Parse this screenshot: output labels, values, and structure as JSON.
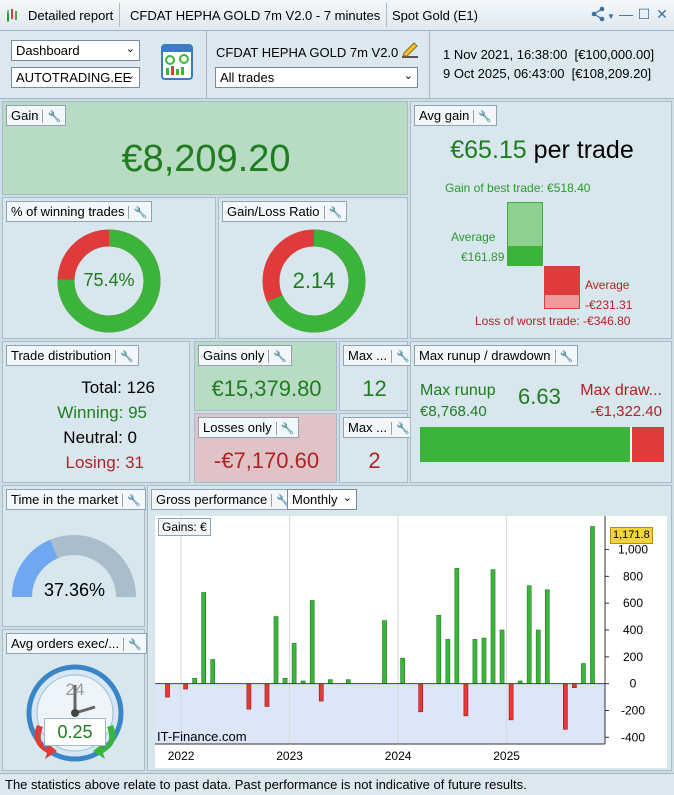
{
  "titlebar": {
    "tabs": [
      "Detailed report",
      "CFDAT HEPHA GOLD 7m V2.0 - 7 minutes",
      "Spot Gold (E1)"
    ]
  },
  "toolbar": {
    "view_select": "Dashboard",
    "account_select": "AUTOTRADING.EE",
    "strategy_name": "CFDAT HEPHA GOLD 7m V2.0",
    "trades_select": "All trades",
    "range_start": "1 Nov 2021, 16:38:00  [€100,000.00]",
    "range_end": "9 Oct 2025, 06:43:00  [€108,209.20]"
  },
  "gain": {
    "title": "Gain",
    "value": "€8,209.20"
  },
  "avg_gain": {
    "title": "Avg gain",
    "value": "€65.15",
    "suffix": "per trade",
    "best_label": "Gain of best trade: €518.40",
    "avg_pos_label": "Average",
    "avg_pos_value": "€161.89",
    "avg_neg_label": "Average",
    "avg_neg_value": "-€231.31",
    "worst_label": "Loss of worst trade: -€346.80"
  },
  "winning": {
    "title": "% of winning trades",
    "value": "75.4%",
    "fraction": 0.754
  },
  "ratio": {
    "title": "Gain/Loss Ratio",
    "value": "2.14",
    "fraction": 0.682
  },
  "distribution": {
    "title": "Trade distribution",
    "total": "Total: 126",
    "winning": "Winning: 95",
    "neutral": "Neutral: 0",
    "losing": "Losing: 31"
  },
  "gains_only": {
    "title": "Gains only",
    "value": "€15,379.80"
  },
  "losses_only": {
    "title": "Losses only",
    "value": "-€7,170.60"
  },
  "max1": {
    "title": "Max ...",
    "value": "12"
  },
  "max2": {
    "title": "Max ...",
    "value": "2"
  },
  "runup": {
    "title": "Max runup / drawdown",
    "runup_label": "Max runup",
    "runup_value": "€8,768.40",
    "ratio": "6.63",
    "drawdown_label": "Max draw...",
    "drawdown_value": "-€1,322.40",
    "runup_fraction": 0.869
  },
  "time_market": {
    "title": "Time in the market",
    "value": "37.36%",
    "fraction": 0.3736
  },
  "avg_orders": {
    "title": "Avg orders exec/...",
    "clock_label": "24",
    "value": "0.25"
  },
  "gross": {
    "title": "Gross performance",
    "period_select": "Monthly",
    "gains_label": "Gains: €",
    "last_value": "1,171.8",
    "watermark": "IT-Finance.com"
  },
  "footer": {
    "text": "The statistics above relate to past data. Past performance is not indicative of future results."
  },
  "colors": {
    "green": "#3cb43c",
    "red": "#e03b3b",
    "gauge_blue": "#6fa8f0",
    "gauge_grey": "#a9bdca"
  },
  "chart_data": {
    "type": "bar",
    "title": "",
    "ylabel": "",
    "ylim": [
      -450,
      1250
    ],
    "yticks": [
      -400,
      -200,
      0,
      200,
      400,
      600,
      800,
      1000
    ],
    "ytick_labels": [
      "-400",
      "-200",
      "0",
      "200",
      "400",
      "600",
      "800",
      "1,000"
    ],
    "xtick_labels": [
      "2022",
      "2023",
      "2024",
      "2025"
    ],
    "xtick_dates": [
      "2022-01",
      "2023-01",
      "2024-01",
      "2025-01"
    ],
    "dates": [
      "2021-11",
      "2021-12",
      "2022-01",
      "2022-02",
      "2022-03",
      "2022-04",
      "2022-05",
      "2022-06",
      "2022-07",
      "2022-08",
      "2022-09",
      "2022-10",
      "2022-11",
      "2022-12",
      "2023-01",
      "2023-02",
      "2023-03",
      "2023-04",
      "2023-05",
      "2023-06",
      "2023-07",
      "2023-08",
      "2023-09",
      "2023-10",
      "2023-11",
      "2023-12",
      "2024-01",
      "2024-02",
      "2024-03",
      "2024-04",
      "2024-05",
      "2024-06",
      "2024-07",
      "2024-08",
      "2024-09",
      "2024-10",
      "2024-11",
      "2024-12",
      "2025-01",
      "2025-02",
      "2025-03",
      "2025-04",
      "2025-05",
      "2025-06",
      "2025-07",
      "2025-08",
      "2025-09",
      "2025-10"
    ],
    "values": [
      -100,
      0,
      -40,
      40,
      680,
      180,
      0,
      0,
      0,
      -190,
      0,
      -170,
      500,
      40,
      300,
      20,
      620,
      -130,
      30,
      0,
      30,
      0,
      0,
      0,
      470,
      0,
      190,
      0,
      -210,
      0,
      510,
      330,
      860,
      -240,
      330,
      340,
      850,
      400,
      -270,
      20,
      730,
      400,
      700,
      0,
      -340,
      -30,
      150,
      1171.8
    ]
  }
}
